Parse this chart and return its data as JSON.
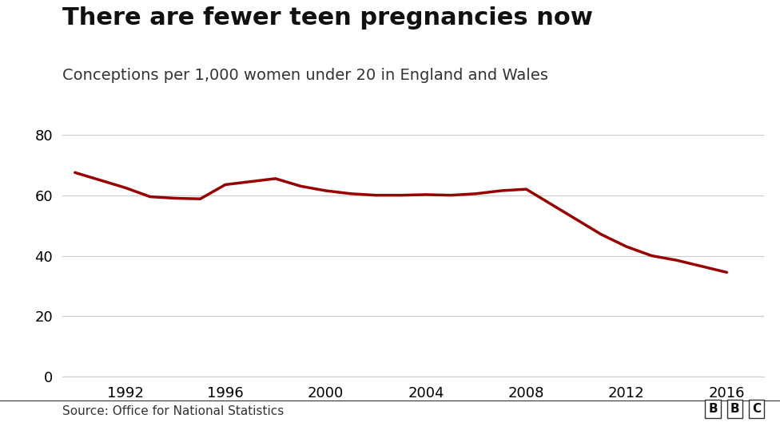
{
  "title": "There are fewer teen pregnancies now",
  "subtitle": "Conceptions per 1,000 women under 20 in England and Wales",
  "source": "Source: Office for National Statistics",
  "bbc_label": "BBC",
  "years": [
    1990,
    1991,
    1992,
    1993,
    1994,
    1995,
    1996,
    1997,
    1998,
    1999,
    2000,
    2001,
    2002,
    2003,
    2004,
    2005,
    2006,
    2007,
    2008,
    2009,
    2010,
    2011,
    2012,
    2013,
    2014,
    2015,
    2016
  ],
  "values": [
    67.5,
    65.0,
    62.5,
    59.5,
    59.0,
    58.8,
    63.5,
    64.5,
    65.5,
    63.0,
    61.5,
    60.5,
    60.0,
    60.0,
    60.2,
    60.0,
    60.5,
    61.5,
    62.0,
    57.0,
    52.0,
    47.0,
    43.0,
    40.0,
    38.5,
    36.5,
    34.5
  ],
  "line_color": "#990000",
  "line_width": 2.5,
  "background_color": "#ffffff",
  "grid_color": "#cccccc",
  "yticks": [
    0,
    20,
    40,
    60,
    80
  ],
  "xticks": [
    1992,
    1996,
    2000,
    2004,
    2008,
    2012,
    2016
  ],
  "xlim": [
    1989.5,
    2017.5
  ],
  "ylim": [
    0,
    84
  ],
  "title_fontsize": 22,
  "subtitle_fontsize": 14,
  "tick_fontsize": 13,
  "source_fontsize": 11
}
